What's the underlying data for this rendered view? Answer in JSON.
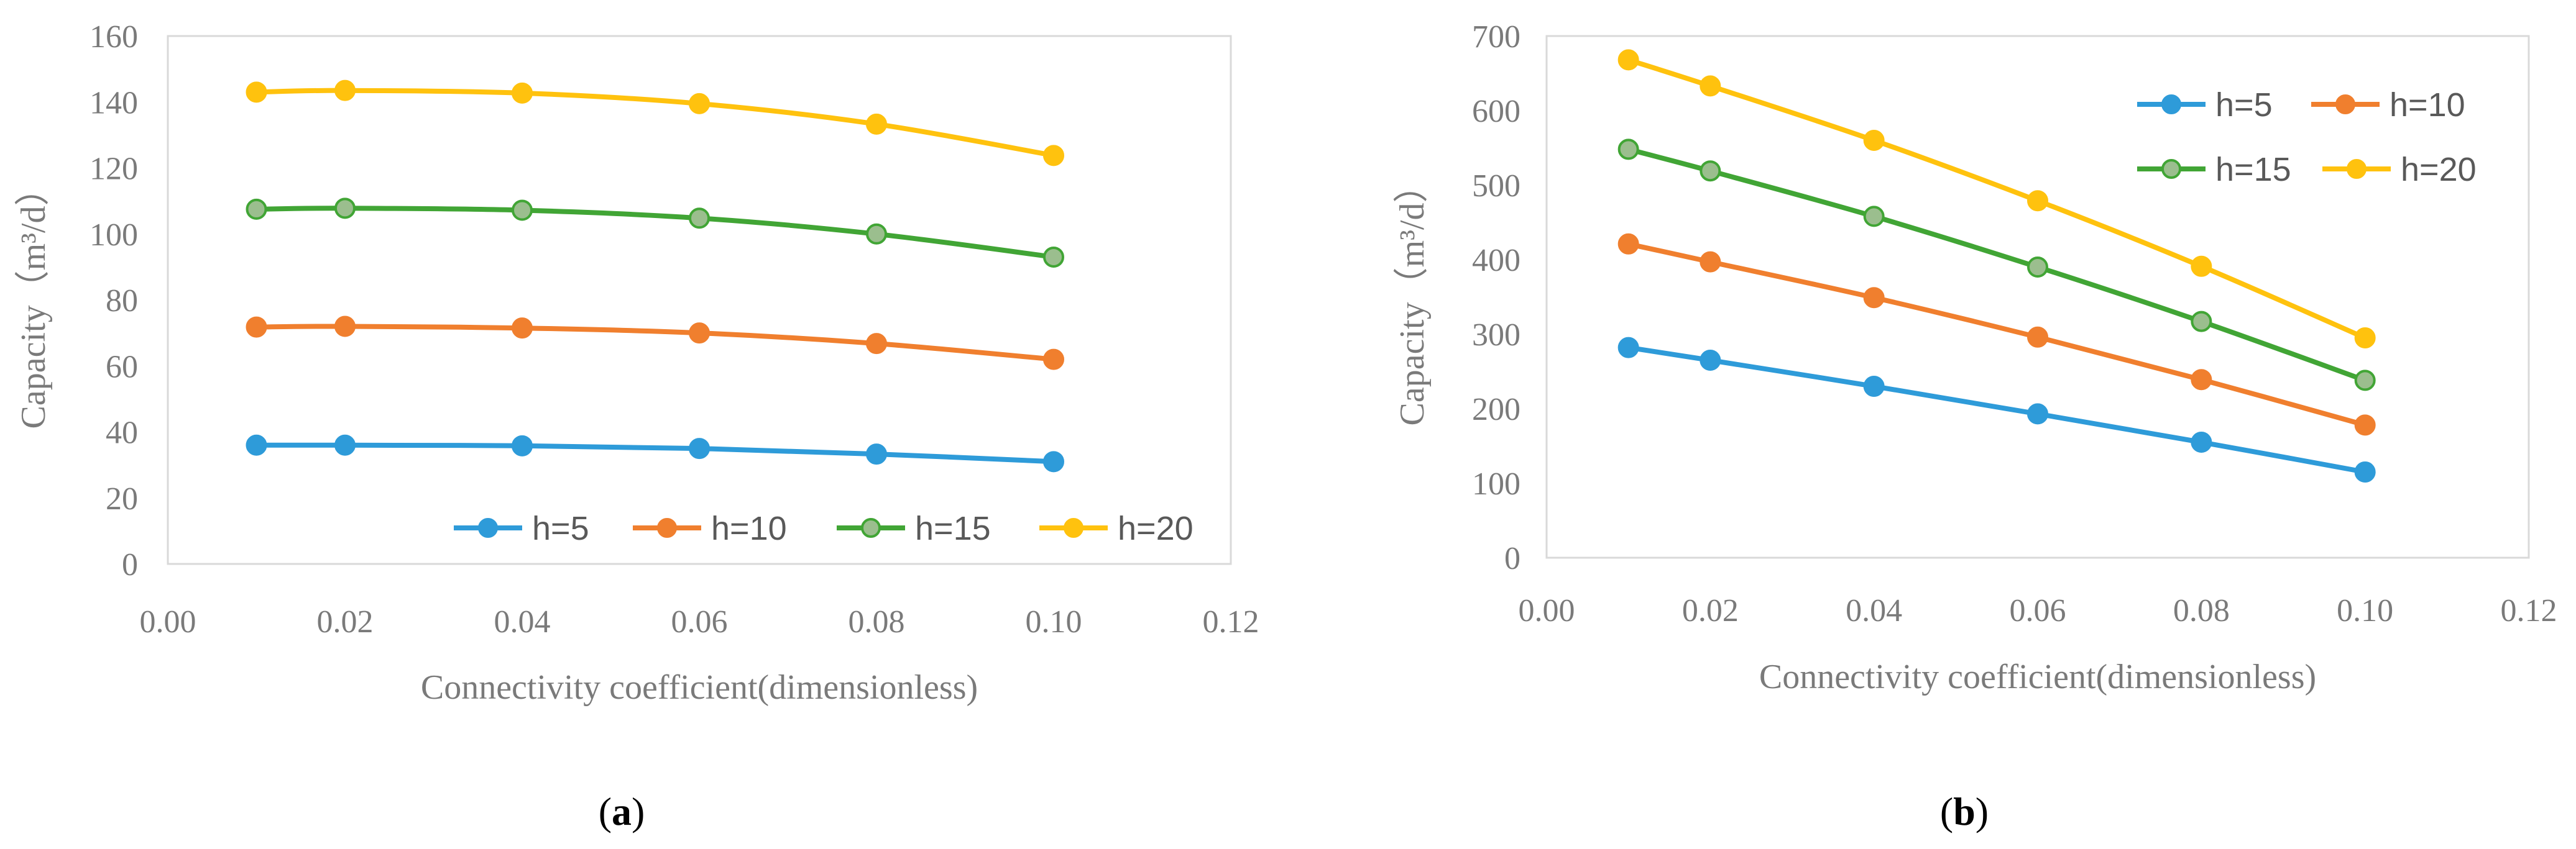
{
  "chart_data": [
    {
      "type": "line",
      "panel": "a",
      "caption": {
        "open": "(",
        "letter": "a",
        "close": ")"
      },
      "xlabel": "Connectivity coefficient(dimensionless)",
      "ylabel": "Capacity（m³/d）",
      "xlim": [
        0.0,
        0.12
      ],
      "ylim": [
        0,
        160
      ],
      "xticks": [
        "0.00",
        "0.02",
        "0.04",
        "0.06",
        "0.08",
        "0.10",
        "0.12"
      ],
      "xtick_values": [
        0.0,
        0.02,
        0.04,
        0.06,
        0.08,
        0.1,
        0.12
      ],
      "yticks": [
        "0",
        "20",
        "40",
        "60",
        "80",
        "100",
        "120",
        "140",
        "160"
      ],
      "ytick_values": [
        0,
        20,
        40,
        60,
        80,
        100,
        120,
        140,
        160
      ],
      "grid": false,
      "legend_position": "bottom-right, single row",
      "x": [
        0.01,
        0.02,
        0.04,
        0.06,
        0.08,
        0.1
      ],
      "series": [
        {
          "name": "h=5",
          "color": "#2E9BD9",
          "marker_fill": "#2E9BD9",
          "values": [
            36,
            36,
            35.8,
            35,
            33.3,
            31
          ]
        },
        {
          "name": "h=10",
          "color": "#F07F2E",
          "marker_fill": "#F07F2E",
          "values": [
            71.8,
            72,
            71.5,
            70,
            66.8,
            62
          ]
        },
        {
          "name": "h=15",
          "color": "#41A535",
          "marker_fill": "#9BBE8E",
          "values": [
            107.5,
            107.8,
            107.2,
            104.8,
            100,
            93
          ]
        },
        {
          "name": "h=20",
          "color": "#FFC20E",
          "marker_fill": "#FFC20E",
          "values": [
            143,
            143.5,
            142.7,
            139.5,
            133.3,
            123.8
          ]
        }
      ]
    },
    {
      "type": "line",
      "panel": "b",
      "caption": {
        "open": "(",
        "letter": "b",
        "close": ")"
      },
      "xlabel": "Connectivity coefficient(dimensionless)",
      "ylabel": "Capacity（m³/d）",
      "xlim": [
        0.0,
        0.12
      ],
      "ylim": [
        0,
        700
      ],
      "xticks": [
        "0.00",
        "0.02",
        "0.04",
        "0.06",
        "0.08",
        "0.10",
        "0.12"
      ],
      "xtick_values": [
        0.0,
        0.02,
        0.04,
        0.06,
        0.08,
        0.1,
        0.12
      ],
      "yticks": [
        "0",
        "100",
        "200",
        "300",
        "400",
        "500",
        "600",
        "700"
      ],
      "ytick_values": [
        0,
        100,
        200,
        300,
        400,
        500,
        600,
        700
      ],
      "grid": false,
      "legend_position": "top-right, two rows",
      "x": [
        0.01,
        0.02,
        0.04,
        0.06,
        0.08,
        0.1
      ],
      "series": [
        {
          "name": "h=5",
          "color": "#2E9BD9",
          "marker_fill": "#2E9BD9",
          "values": [
            282,
            265,
            230,
            193,
            155,
            115
          ]
        },
        {
          "name": "h=10",
          "color": "#F07F2E",
          "marker_fill": "#F07F2E",
          "values": [
            421,
            397,
            349,
            296,
            239,
            178
          ]
        },
        {
          "name": "h=15",
          "color": "#41A535",
          "marker_fill": "#9BBE8E",
          "values": [
            548,
            519,
            458,
            390,
            317,
            238
          ]
        },
        {
          "name": "h=20",
          "color": "#FFC20E",
          "marker_fill": "#FFC20E",
          "values": [
            668,
            633,
            560,
            479,
            391,
            295
          ]
        }
      ]
    }
  ]
}
